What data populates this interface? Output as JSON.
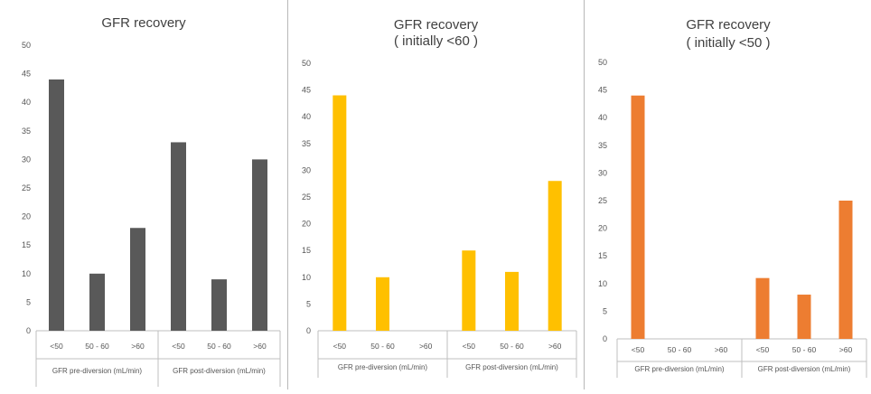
{
  "chart_data": [
    {
      "type": "bar",
      "title": [
        "GFR recovery"
      ],
      "color": "#595959",
      "ylim": [
        0,
        50
      ],
      "yticks": [
        0,
        5,
        10,
        15,
        20,
        25,
        30,
        35,
        40,
        45,
        50
      ],
      "categories": [
        "<50",
        "50 - 60",
        ">60",
        "<50",
        "50 - 60",
        ">60"
      ],
      "groups": [
        "GFR pre-diversion (mL/min)",
        "GFR post-diversion (mL/min)"
      ],
      "values": [
        44,
        10,
        18,
        33,
        9,
        30
      ],
      "grid": false,
      "legend": "none"
    },
    {
      "type": "bar",
      "title": [
        "GFR recovery",
        "( initially <60 )"
      ],
      "color": "#FFC000",
      "ylim": [
        0,
        50
      ],
      "yticks": [
        0,
        5,
        10,
        15,
        20,
        25,
        30,
        35,
        40,
        45,
        50
      ],
      "categories": [
        "<50",
        "50 - 60",
        ">60",
        "<50",
        "50 - 60",
        ">60"
      ],
      "groups": [
        "GFR pre-diversion (mL/min)",
        "GFR post-diversion (mL/min)"
      ],
      "values": [
        44,
        10,
        0,
        15,
        11,
        28
      ],
      "grid": false,
      "legend": "none"
    },
    {
      "type": "bar",
      "title": [
        "GFR recovery",
        "( initially <50 )"
      ],
      "color": "#ED7D31",
      "ylim": [
        0,
        50
      ],
      "yticks": [
        0,
        5,
        10,
        15,
        20,
        25,
        30,
        35,
        40,
        45,
        50
      ],
      "categories": [
        "<50",
        "50 - 60",
        ">60",
        "<50",
        "50 - 60",
        ">60"
      ],
      "groups": [
        "GFR pre-diversion (mL/min)",
        "GFR post-diversion (mL/min)"
      ],
      "values": [
        44,
        0,
        0,
        11,
        8,
        25
      ],
      "grid": false,
      "legend": "none"
    }
  ]
}
